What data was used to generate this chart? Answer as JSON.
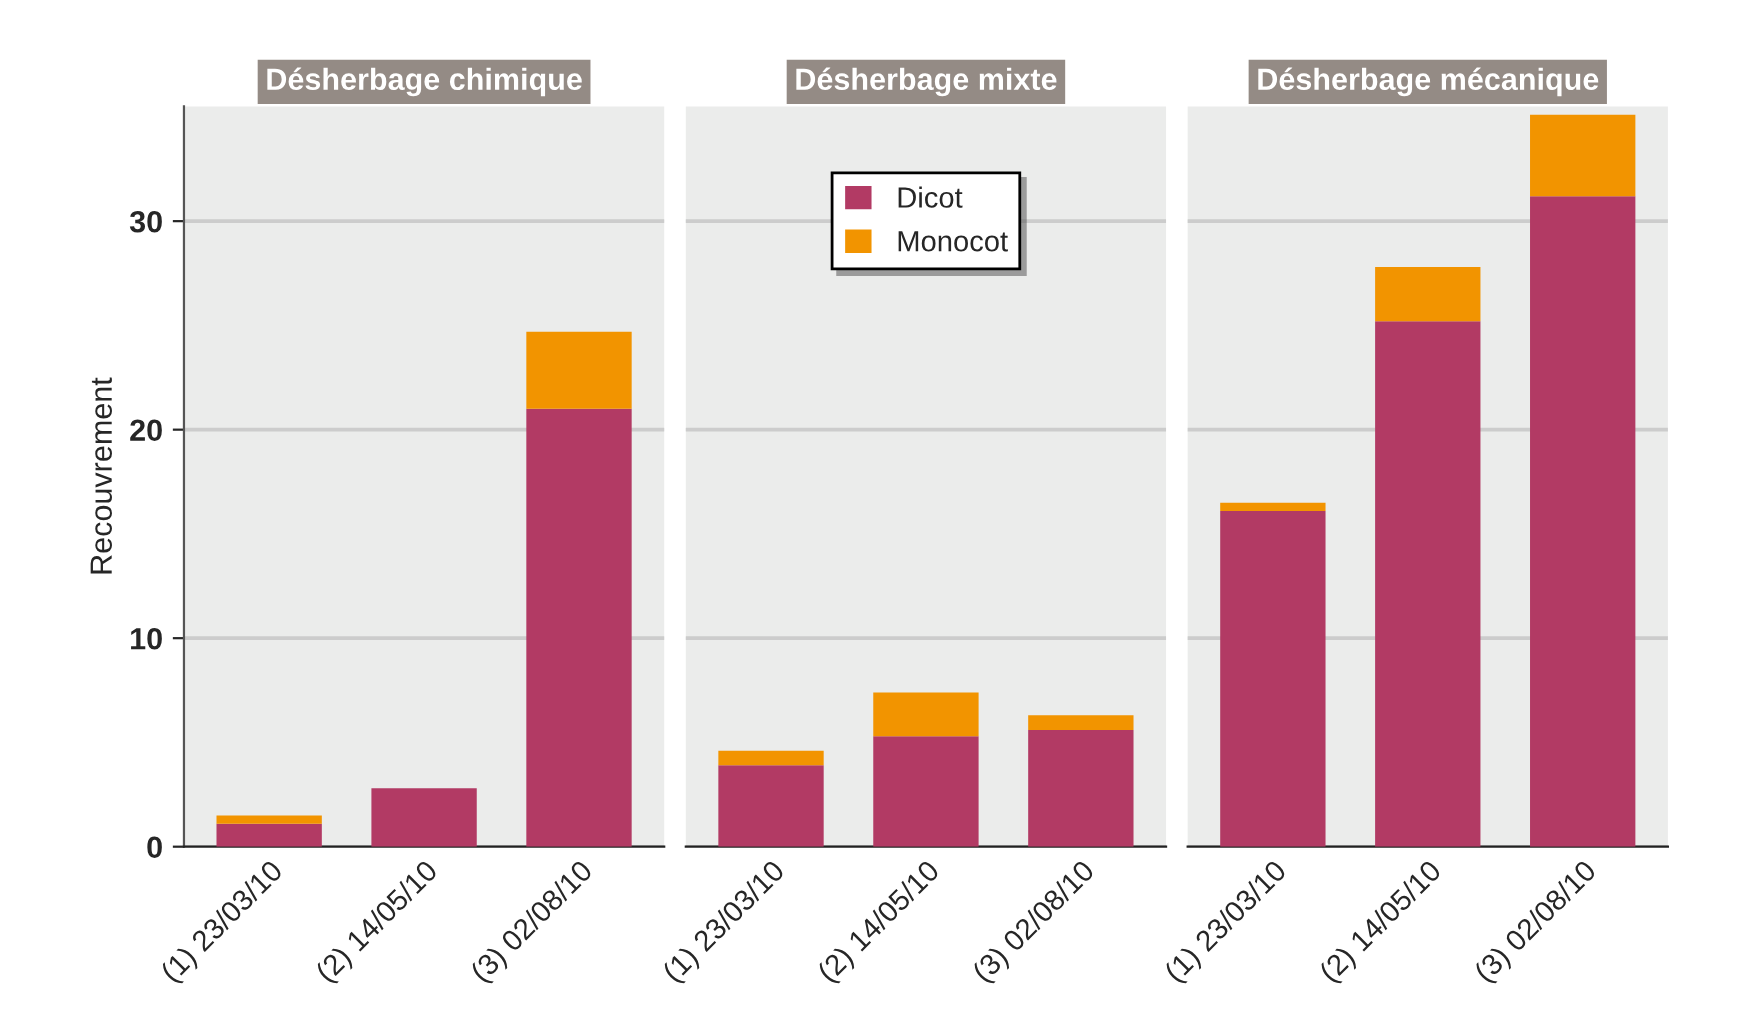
{
  "chart_data": [
    {
      "type": "bar",
      "stacked": true,
      "title": "Désherbage chimique",
      "ylabel": "Recouvrement",
      "categories": [
        "(1) 23/03/10",
        "(2) 14/05/10",
        "(3) 02/08/10"
      ],
      "series": [
        {
          "name": "Dicot",
          "color": "#b23a64",
          "values": [
            1.1,
            2.8,
            21.0
          ]
        },
        {
          "name": "Monocot",
          "color": "#f29400",
          "values": [
            0.4,
            null,
            3.7
          ]
        }
      ],
      "ylim": [
        0,
        35.5
      ],
      "yticks": [
        0,
        10,
        20,
        30
      ],
      "grid": "y",
      "legend": "top"
    },
    {
      "type": "bar",
      "stacked": true,
      "title": "Désherbage mixte",
      "categories": [
        "(1) 23/03/10",
        "(2) 14/05/10",
        "(3) 02/08/10"
      ],
      "series": [
        {
          "name": "Dicot",
          "color": "#b23a64",
          "values": [
            3.9,
            5.3,
            5.6
          ]
        },
        {
          "name": "Monocot",
          "color": "#f29400",
          "values": [
            0.7,
            2.1,
            0.7
          ]
        }
      ],
      "ylim": [
        0,
        35.5
      ],
      "yticks": [
        0,
        10,
        20,
        30
      ],
      "grid": "y",
      "tick_labels": "x"
    },
    {
      "type": "bar",
      "stacked": true,
      "title": "Désherbage mécanique",
      "categories": [
        "(1) 23/03/10",
        "(2) 14/05/10",
        "(3) 02/08/10"
      ],
      "series": [
        {
          "name": "Dicot",
          "color": "#b23a64",
          "values": [
            16.1,
            25.2,
            31.2
          ]
        },
        {
          "name": "Monocot",
          "color": "#f29400",
          "values": [
            0.4,
            2.6,
            3.9
          ]
        }
      ],
      "ylim": [
        0,
        35.5
      ],
      "yticks": [
        0,
        10,
        20,
        30
      ],
      "grid": "y",
      "tick_labels": "x"
    }
  ]
}
